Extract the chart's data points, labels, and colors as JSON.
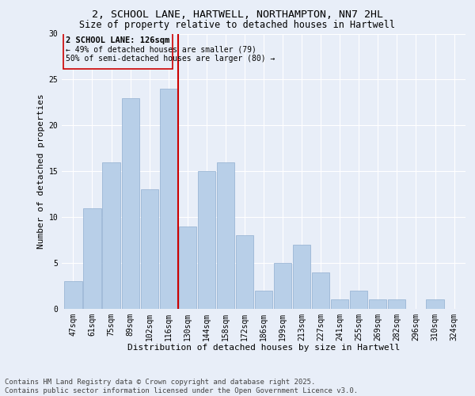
{
  "title": "2, SCHOOL LANE, HARTWELL, NORTHAMPTON, NN7 2HL",
  "subtitle": "Size of property relative to detached houses in Hartwell",
  "xlabel": "Distribution of detached houses by size in Hartwell",
  "ylabel": "Number of detached properties",
  "categories": [
    "47sqm",
    "61sqm",
    "75sqm",
    "89sqm",
    "102sqm",
    "116sqm",
    "130sqm",
    "144sqm",
    "158sqm",
    "172sqm",
    "186sqm",
    "199sqm",
    "213sqm",
    "227sqm",
    "241sqm",
    "255sqm",
    "269sqm",
    "282sqm",
    "296sqm",
    "310sqm",
    "324sqm"
  ],
  "values": [
    3,
    11,
    16,
    23,
    13,
    24,
    9,
    15,
    16,
    8,
    2,
    5,
    7,
    4,
    1,
    2,
    1,
    1,
    0,
    1,
    0
  ],
  "bar_color": "#b8cfe8",
  "bar_edge_color": "#90aed0",
  "vline_color": "#cc0000",
  "annotation_title": "2 SCHOOL LANE: 126sqm",
  "annotation_line1": "← 49% of detached houses are smaller (79)",
  "annotation_line2": "50% of semi-detached houses are larger (80) →",
  "annotation_box_color": "#cc0000",
  "ylim": [
    0,
    30
  ],
  "yticks": [
    0,
    5,
    10,
    15,
    20,
    25,
    30
  ],
  "background_color": "#e8eef8",
  "grid_color": "#ffffff",
  "footer_line1": "Contains HM Land Registry data © Crown copyright and database right 2025.",
  "footer_line2": "Contains public sector information licensed under the Open Government Licence v3.0.",
  "title_fontsize": 9.5,
  "subtitle_fontsize": 8.5,
  "axis_label_fontsize": 8,
  "tick_fontsize": 7,
  "annotation_title_fontsize": 7.5,
  "annotation_text_fontsize": 7,
  "footer_fontsize": 6.5
}
